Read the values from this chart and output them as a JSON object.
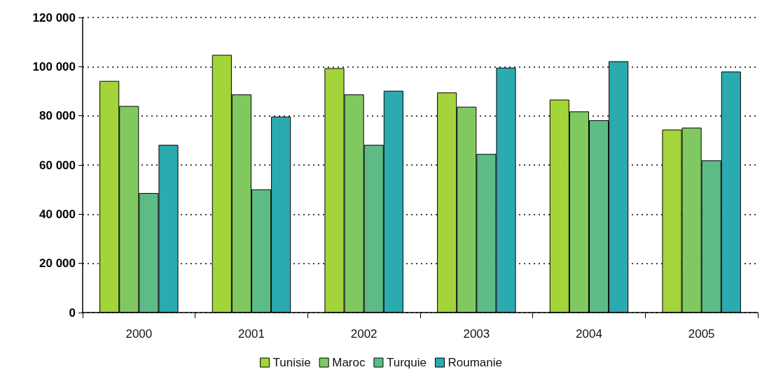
{
  "chart_data": {
    "type": "bar",
    "categories": [
      "2000",
      "2001",
      "2002",
      "2003",
      "2004",
      "2005"
    ],
    "series": [
      {
        "name": "Tunisie",
        "color": "#a3d43a",
        "values": [
          94200,
          104800,
          99400,
          89500,
          86600,
          74400
        ]
      },
      {
        "name": "Maroc",
        "color": "#80c960",
        "values": [
          84000,
          88700,
          88700,
          83700,
          81800,
          75200
        ]
      },
      {
        "name": "Turquie",
        "color": "#5dbb86",
        "values": [
          48600,
          50100,
          68200,
          64500,
          78200,
          61900
        ]
      },
      {
        "name": "Roumanie",
        "color": "#2aabb0",
        "values": [
          68200,
          79700,
          90200,
          99600,
          102200,
          98000
        ]
      }
    ],
    "ylim": [
      0,
      120000
    ],
    "yticks": [
      {
        "value": 0,
        "label": "0"
      },
      {
        "value": 20000,
        "label": "20 000"
      },
      {
        "value": 40000,
        "label": "40 000"
      },
      {
        "value": 60000,
        "label": "60 000"
      },
      {
        "value": 80000,
        "label": "80 000"
      },
      {
        "value": 100000,
        "label": "100 000"
      },
      {
        "value": 120000,
        "label": "120 000"
      }
    ],
    "grid": "y",
    "legend": "bottom"
  }
}
